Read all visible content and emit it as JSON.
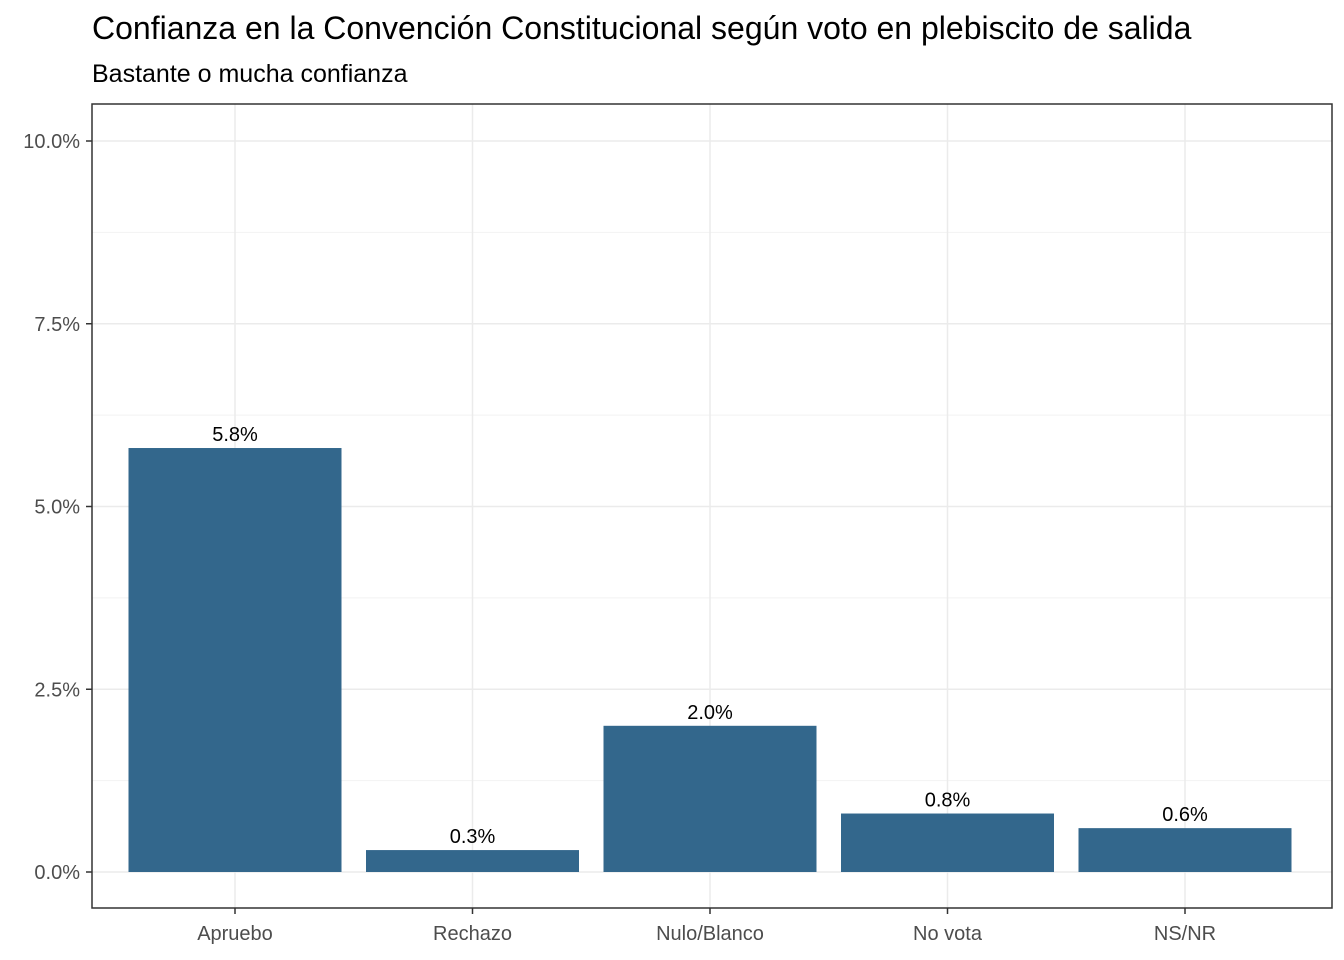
{
  "chart_data": {
    "type": "bar",
    "title": "Confianza en la Convención Constitucional según voto en plebiscito de salida",
    "subtitle": "Bastante o mucha confianza",
    "categories": [
      "Apruebo",
      "Rechazo",
      "Nulo/Blanco",
      "No vota",
      "NS/NR"
    ],
    "values": [
      5.8,
      0.3,
      2.0,
      0.8,
      0.6
    ],
    "data_labels": [
      "5.8%",
      "0.3%",
      "2.0%",
      "0.8%",
      "0.6%"
    ],
    "xlabel": "",
    "ylabel": "",
    "ylim": [
      0,
      10
    ],
    "y_ticks": [
      0,
      2.5,
      5,
      7.5,
      10
    ],
    "y_tick_labels": [
      "0.0%",
      "2.5%",
      "5.0%",
      "7.5%",
      "10.0%"
    ],
    "grid": true,
    "bar_color": "#33678c"
  }
}
